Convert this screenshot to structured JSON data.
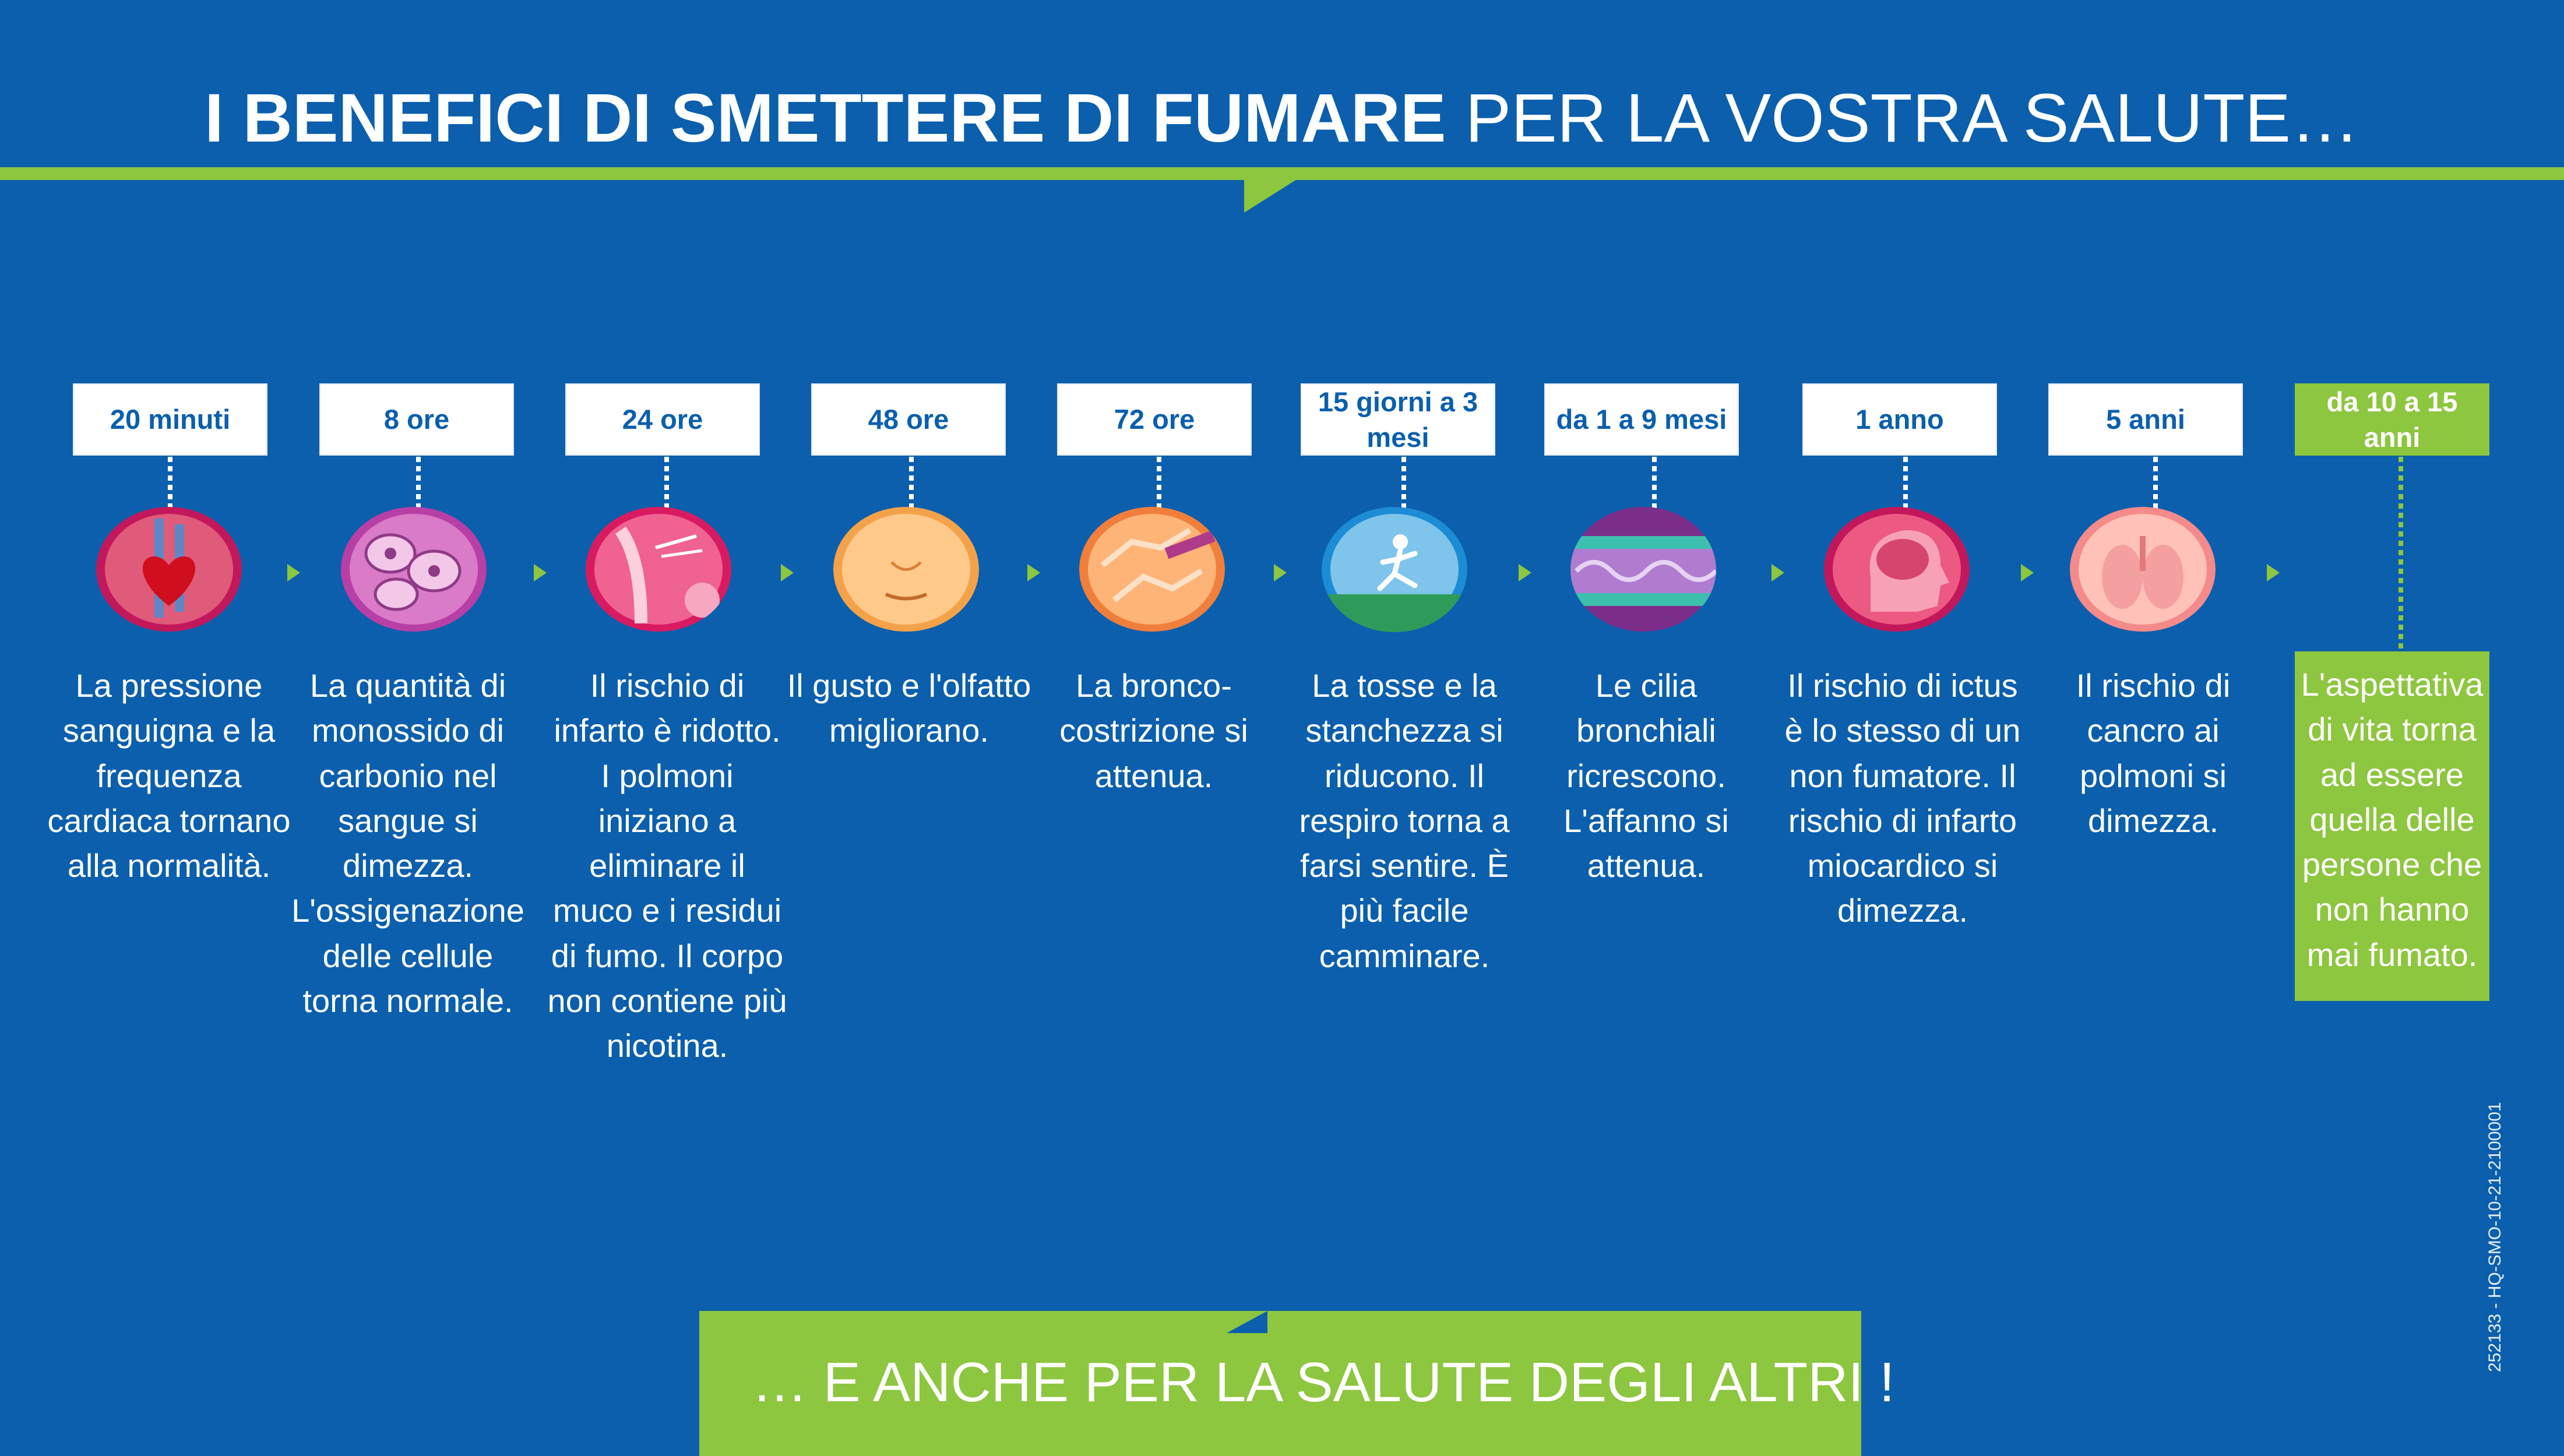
{
  "header": {
    "title_bold": "I BENEFICI DI SMETTERE DI FUMARE",
    "title_light": "PER LA VOSTRA SALUTE…"
  },
  "colors": {
    "background": "#0b5fad",
    "accent_green": "#8dc63f",
    "text": "#ffffff"
  },
  "timeline": [
    {
      "label": "20 minuti",
      "icon": "heart-icon",
      "text": "La pressione sanguigna e la frequenza cardiaca tornano alla normalità."
    },
    {
      "label": "8 ore",
      "icon": "blood-cells-icon",
      "text": "La quantità di monossido di carbonio nel sangue si dimezza. L'ossigenazione delle cellule torna normale."
    },
    {
      "label": "24 ore",
      "icon": "lungs-airway-icon",
      "text": "Il rischio di infarto è ridotto. I polmoni iniziano a eliminare il muco e i residui di fumo. Il corpo non contiene più nicotina."
    },
    {
      "label": "48 ore",
      "icon": "nose-mouth-icon",
      "text": "Il gusto e l'olfatto migliorano."
    },
    {
      "label": "72 ore",
      "icon": "bronchi-icon",
      "text": "La bronco-costrizione si attenua."
    },
    {
      "label": "15 giorni a 3 mesi",
      "icon": "runner-icon",
      "text": "La tosse e la stanchezza si riducono. Il respiro torna a farsi sentire. È più facile camminare."
    },
    {
      "label": "da 1 a 9 mesi",
      "icon": "cilia-icon",
      "text": "Le cilia bronchiali ricrescono. L'affanno si attenua."
    },
    {
      "label": "1 anno",
      "icon": "brain-head-icon",
      "text": "Il rischio di ictus è lo stesso di un non fumatore. Il rischio di infarto miocardico si dimezza."
    },
    {
      "label": "5 anni",
      "icon": "torso-lungs-icon",
      "text": "Il rischio di cancro ai polmoni si dimezza."
    },
    {
      "label": "da 10 a 15 anni",
      "icon": "",
      "text": "L'aspettativa di vita torna ad essere quella delle persone che non hanno mai fumato."
    }
  ],
  "footer": {
    "text": "…  E ANCHE PER LA SALUTE DEGLI ALTRI  !",
    "code": "252133 - HQ-SMO-10-21-2100001"
  }
}
